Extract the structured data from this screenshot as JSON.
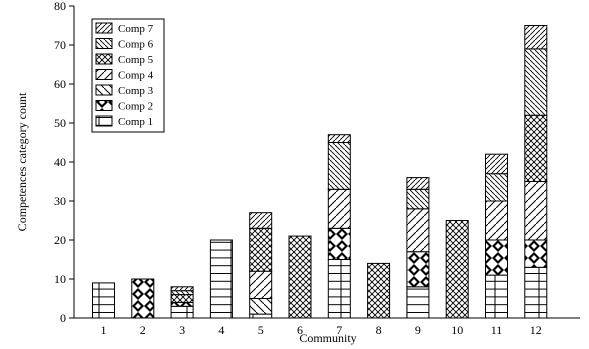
{
  "chart_data": {
    "type": "bar",
    "stacked": true,
    "categories": [
      "1",
      "2",
      "3",
      "4",
      "5",
      "6",
      "7",
      "8",
      "9",
      "10",
      "11",
      "12"
    ],
    "xlabel": "Community",
    "ylabel": "Competences category count",
    "ylim": [
      0,
      80
    ],
    "yticks": [
      0,
      10,
      20,
      30,
      40,
      50,
      60,
      70,
      80
    ],
    "legend_position": "top-left",
    "grid": false,
    "series": [
      {
        "name": "Comp 1",
        "pattern": "brick",
        "values": [
          9,
          0,
          3,
          20,
          1,
          0,
          15,
          0,
          8,
          0,
          11,
          13
        ]
      },
      {
        "name": "Comp 2",
        "pattern": "diamond-check",
        "values": [
          0,
          10,
          1,
          0,
          0,
          0,
          8,
          0,
          9,
          0,
          9,
          7
        ]
      },
      {
        "name": "Comp 3",
        "pattern": "back-diagonal",
        "values": [
          0,
          0,
          0,
          0,
          4,
          0,
          0,
          0,
          0,
          0,
          0,
          0
        ]
      },
      {
        "name": "Comp 4",
        "pattern": "forward-diagonal",
        "values": [
          0,
          0,
          0,
          0,
          7,
          0,
          10,
          0,
          11,
          0,
          10,
          15
        ]
      },
      {
        "name": "Comp 5",
        "pattern": "crosshatch",
        "values": [
          0,
          0,
          2,
          0,
          11,
          21,
          0,
          14,
          0,
          25,
          0,
          17
        ]
      },
      {
        "name": "Comp 6",
        "pattern": "dense-back-diagonal",
        "values": [
          0,
          0,
          1,
          0,
          0,
          0,
          12,
          0,
          5,
          0,
          7,
          17
        ]
      },
      {
        "name": "Comp 7",
        "pattern": "dense-forward-diagonal",
        "values": [
          0,
          0,
          1,
          0,
          4,
          0,
          2,
          0,
          3,
          0,
          5,
          6
        ]
      }
    ]
  }
}
